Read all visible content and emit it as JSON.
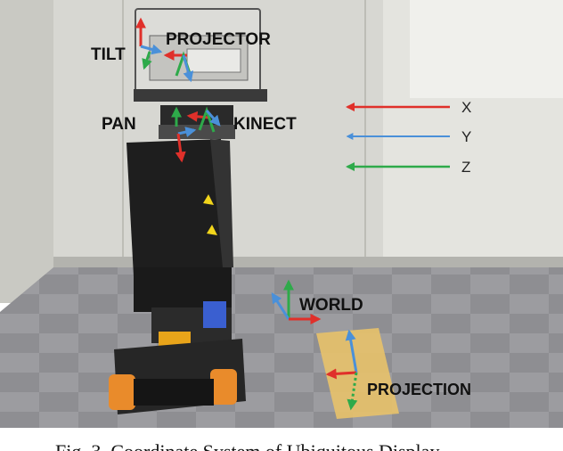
{
  "labels": {
    "tilt": "TILT",
    "projector": "PROJECTOR",
    "pan": "PAN",
    "kinect": "KINECT",
    "world": "WORLD",
    "projection": "PROJECTION"
  },
  "legend": [
    {
      "axis": "X",
      "color": "#e0302a"
    },
    {
      "axis": "Y",
      "color": "#4a90d9"
    },
    {
      "axis": "Z",
      "color": "#2eaa4a"
    }
  ],
  "caption": "Fig. 3. Coordinate System of Ubiquitous Display",
  "colors": {
    "x_axis": "#e0302a",
    "y_axis": "#4a90d9",
    "z_axis": "#2eaa4a",
    "projection_area": "#e8c26a"
  }
}
